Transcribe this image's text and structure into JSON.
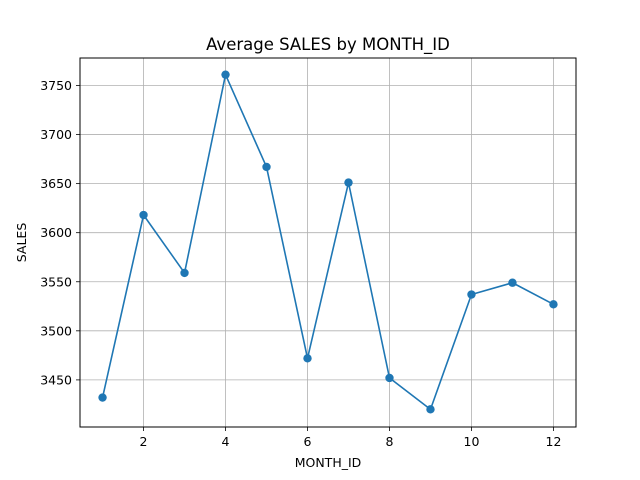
{
  "chart_data": {
    "type": "line",
    "title": "Average SALES by MONTH_ID",
    "xlabel": "MONTH_ID",
    "ylabel": "SALES",
    "grid": true,
    "legend": "none",
    "marker": "circle",
    "color": "#1f77b4",
    "xlim": [
      0.45,
      12.55
    ],
    "ylim": [
      3402,
      3778
    ],
    "x_ticks": [
      2,
      4,
      6,
      8,
      10,
      12
    ],
    "y_ticks": [
      3450,
      3500,
      3550,
      3600,
      3650,
      3700,
      3750
    ],
    "x": [
      1,
      2,
      3,
      4,
      5,
      6,
      7,
      8,
      9,
      10,
      11,
      12
    ],
    "series": [
      {
        "values": [
          3432,
          3618,
          3559,
          3761,
          3667,
          3472,
          3651,
          3452,
          3420,
          3537,
          3549,
          3527
        ]
      }
    ]
  }
}
